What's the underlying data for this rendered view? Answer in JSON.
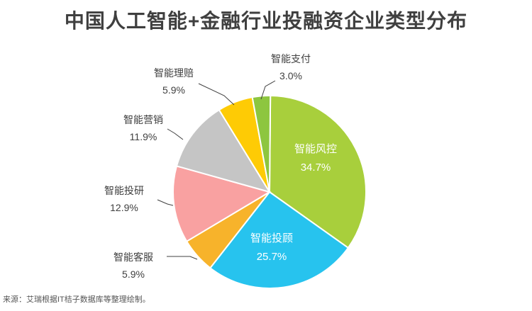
{
  "page": {
    "title": "中国人工智能+金融行业投融资企业类型分布",
    "source": "来源：艾瑞根据IT桔子数据库等整理绘制。"
  },
  "chart_data": {
    "type": "pie",
    "title": "中国人工智能+金融行业投融资企业类型分布",
    "slices": [
      {
        "label": "智能风控",
        "value": 34.7,
        "display": "34.7%",
        "color": "#a8cf3c",
        "label_position": "inside"
      },
      {
        "label": "智能投顾",
        "value": 25.7,
        "display": "25.7%",
        "color": "#27c3ee",
        "label_position": "inside"
      },
      {
        "label": "智能客服",
        "value": 5.9,
        "display": "5.9%",
        "color": "#f7b32b",
        "label_position": "outside"
      },
      {
        "label": "智能投研",
        "value": 12.9,
        "display": "12.9%",
        "color": "#f9a1a1",
        "label_position": "outside"
      },
      {
        "label": "智能营销",
        "value": 11.9,
        "display": "11.9%",
        "color": "#c5c5c5",
        "label_position": "outside"
      },
      {
        "label": "智能理赔",
        "value": 5.9,
        "display": "5.9%",
        "color": "#fecb05",
        "label_position": "outside"
      },
      {
        "label": "智能支付",
        "value": 3.0,
        "display": "3.0%",
        "color": "#8dc63f",
        "label_position": "outside"
      }
    ]
  }
}
